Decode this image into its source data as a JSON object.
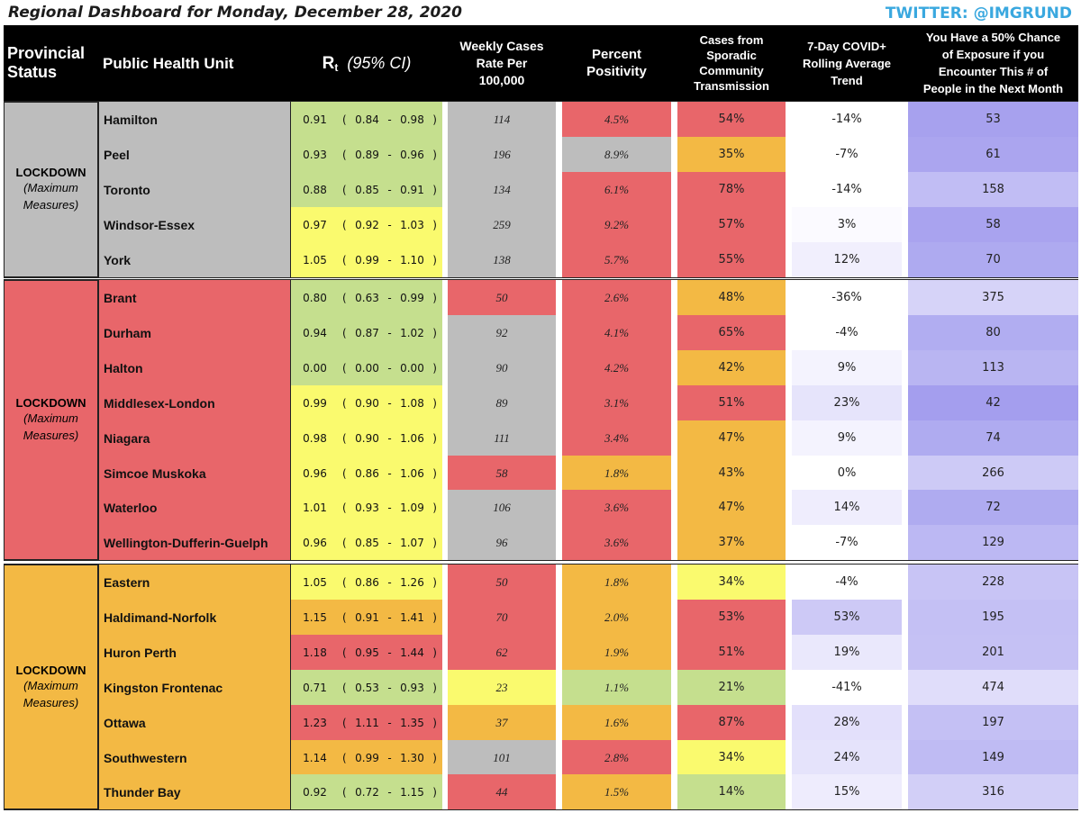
{
  "page": {
    "title": "Regional Dashboard for Monday, December 28, 2020",
    "twitter": "TWITTER: @IMGRUND"
  },
  "header": {
    "status": "Provincial\nStatus",
    "unit": "Public Health Unit",
    "rt_symbol": "R",
    "rt_sub": "t",
    "rt_ci": "(95% CI)",
    "weekly": "Weekly Cases\nRate Per\n100,000",
    "positivity": "Percent\nPositivity",
    "sporadic": "Cases from\nSporadic\nCommunity\nTransmission",
    "trend": "7-Day COVID+\nRolling Average\nTrend",
    "exposure": "You Have a 50% Chance\nof Exposure if you\nEncounter This # of\nPeople in the Next Month"
  },
  "colors": {
    "grey": "#bdbdbd",
    "red": "#e8666a",
    "orange": "#f3b944",
    "yellow": "#fafa6e",
    "green": "#c5df8e",
    "white": "#ffffff"
  },
  "groups": [
    {
      "status": "LOCKDOWN",
      "status_sub": "(Maximum\nMeasures)",
      "status_color": "#bdbdbd",
      "rows": [
        {
          "unit": "Hamilton",
          "unit_color": "#bdbdbd",
          "rt": "0.91",
          "lo": "0.84",
          "hi": "0.98",
          "rt_color": "#c5df8e",
          "weekly": "114",
          "weekly_color": "#bdbdbd",
          "pct": "4.5%",
          "pct_color": "#e8666a",
          "spor": "54%",
          "spor_color": "#e8666a",
          "trend": "-14%",
          "trend_color": "#ffffff",
          "expo": "53",
          "expo_color": "#a7a1ee"
        },
        {
          "unit": "Peel",
          "unit_color": "#bdbdbd",
          "rt": "0.93",
          "lo": "0.89",
          "hi": "0.96",
          "rt_color": "#c5df8e",
          "weekly": "196",
          "weekly_color": "#bdbdbd",
          "pct": "8.9%",
          "pct_color": "#bdbdbd",
          "spor": "35%",
          "spor_color": "#f3b944",
          "trend": "-7%",
          "trend_color": "#ffffff",
          "expo": "61",
          "expo_color": "#aba5ef"
        },
        {
          "unit": "Toronto",
          "unit_color": "#bdbdbd",
          "rt": "0.88",
          "lo": "0.85",
          "hi": "0.91",
          "rt_color": "#c5df8e",
          "weekly": "134",
          "weekly_color": "#bdbdbd",
          "pct": "6.1%",
          "pct_color": "#e8666a",
          "spor": "78%",
          "spor_color": "#e8666a",
          "trend": "-14%",
          "trend_color": "#ffffff",
          "expo": "158",
          "expo_color": "#c1bdf4"
        },
        {
          "unit": "Windsor-Essex",
          "unit_color": "#bdbdbd",
          "rt": "0.97",
          "lo": "0.92",
          "hi": "1.03",
          "rt_color": "#fafa6e",
          "weekly": "259",
          "weekly_color": "#bdbdbd",
          "pct": "9.2%",
          "pct_color": "#e8666a",
          "spor": "57%",
          "spor_color": "#e8666a",
          "trend": "3%",
          "trend_color": "#fbfaff",
          "expo": "58",
          "expo_color": "#a9a3ef"
        },
        {
          "unit": "York",
          "unit_color": "#bdbdbd",
          "rt": "1.05",
          "lo": "0.99",
          "hi": "1.10",
          "rt_color": "#fafa6e",
          "weekly": "138",
          "weekly_color": "#bdbdbd",
          "pct": "5.7%",
          "pct_color": "#e8666a",
          "spor": "55%",
          "spor_color": "#e8666a",
          "trend": "12%",
          "trend_color": "#f1effd",
          "expo": "70",
          "expo_color": "#aeaaf0"
        }
      ]
    },
    {
      "status": "LOCKDOWN",
      "status_sub": "(Maximum\nMeasures)",
      "status_color": "#e8666a",
      "rows": [
        {
          "unit": "Brant",
          "unit_color": "#e8666a",
          "rt": "0.80",
          "lo": "0.63",
          "hi": "0.99",
          "rt_color": "#c5df8e",
          "weekly": "50",
          "weekly_color": "#e8666a",
          "pct": "2.6%",
          "pct_color": "#e8666a",
          "spor": "48%",
          "spor_color": "#f3b944",
          "trend": "-36%",
          "trend_color": "#ffffff",
          "expo": "375",
          "expo_color": "#d6d3f8"
        },
        {
          "unit": "Durham",
          "unit_color": "#e8666a",
          "rt": "0.94",
          "lo": "0.87",
          "hi": "1.02",
          "rt_color": "#c5df8e",
          "weekly": "92",
          "weekly_color": "#bdbdbd",
          "pct": "4.1%",
          "pct_color": "#e8666a",
          "spor": "65%",
          "spor_color": "#e8666a",
          "trend": "-4%",
          "trend_color": "#ffffff",
          "expo": "80",
          "expo_color": "#b1adf1"
        },
        {
          "unit": "Halton",
          "unit_color": "#e8666a",
          "rt": "0.00",
          "lo": "0.00",
          "hi": "0.00",
          "rt_color": "#c5df8e",
          "weekly": "90",
          "weekly_color": "#bdbdbd",
          "pct": "4.2%",
          "pct_color": "#e8666a",
          "spor": "42%",
          "spor_color": "#f3b944",
          "trend": "9%",
          "trend_color": "#f4f3fe",
          "expo": "113",
          "expo_color": "#b9b5f2"
        },
        {
          "unit": "Middlesex-London",
          "unit_color": "#e8666a",
          "rt": "0.99",
          "lo": "0.90",
          "hi": "1.08",
          "rt_color": "#fafa6e",
          "weekly": "89",
          "weekly_color": "#bdbdbd",
          "pct": "3.1%",
          "pct_color": "#e8666a",
          "spor": "51%",
          "spor_color": "#e8666a",
          "trend": "23%",
          "trend_color": "#e6e4fb",
          "expo": "42",
          "expo_color": "#a49eee"
        },
        {
          "unit": "Niagara",
          "unit_color": "#e8666a",
          "rt": "0.98",
          "lo": "0.90",
          "hi": "1.06",
          "rt_color": "#fafa6e",
          "weekly": "111",
          "weekly_color": "#bdbdbd",
          "pct": "3.4%",
          "pct_color": "#e8666a",
          "spor": "47%",
          "spor_color": "#f3b944",
          "trend": "9%",
          "trend_color": "#f4f3fe",
          "expo": "74",
          "expo_color": "#afabf0"
        },
        {
          "unit": "Simcoe Muskoka",
          "unit_color": "#e8666a",
          "rt": "0.96",
          "lo": "0.86",
          "hi": "1.06",
          "rt_color": "#fafa6e",
          "weekly": "58",
          "weekly_color": "#e8666a",
          "pct": "1.8%",
          "pct_color": "#f3b944",
          "spor": "43%",
          "spor_color": "#f3b944",
          "trend": "0%",
          "trend_color": "#ffffff",
          "expo": "266",
          "expo_color": "#cdcaf6"
        },
        {
          "unit": "Waterloo",
          "unit_color": "#e8666a",
          "rt": "1.01",
          "lo": "0.93",
          "hi": "1.09",
          "rt_color": "#fafa6e",
          "weekly": "106",
          "weekly_color": "#bdbdbd",
          "pct": "3.6%",
          "pct_color": "#e8666a",
          "spor": "47%",
          "spor_color": "#f3b944",
          "trend": "14%",
          "trend_color": "#efedfd",
          "expo": "72",
          "expo_color": "#afabf0"
        },
        {
          "unit": "Wellington-Dufferin-Guelph",
          "unit_color": "#e8666a",
          "rt": "0.96",
          "lo": "0.85",
          "hi": "1.07",
          "rt_color": "#fafa6e",
          "weekly": "96",
          "weekly_color": "#bdbdbd",
          "pct": "3.6%",
          "pct_color": "#e8666a",
          "spor": "37%",
          "spor_color": "#f3b944",
          "trend": "-7%",
          "trend_color": "#ffffff",
          "expo": "129",
          "expo_color": "#bcb8f3"
        }
      ]
    },
    {
      "status": "LOCKDOWN",
      "status_sub": "(Maximum\nMeasures)",
      "status_color": "#f3b944",
      "rows": [
        {
          "unit": "Eastern",
          "unit_color": "#f3b944",
          "rt": "1.05",
          "lo": "0.86",
          "hi": "1.26",
          "rt_color": "#fafa6e",
          "weekly": "50",
          "weekly_color": "#e8666a",
          "pct": "1.8%",
          "pct_color": "#f3b944",
          "spor": "34%",
          "spor_color": "#fafa6e",
          "trend": "-4%",
          "trend_color": "#ffffff",
          "expo": "228",
          "expo_color": "#c8c4f5"
        },
        {
          "unit": "Haldimand-Norfolk",
          "unit_color": "#f3b944",
          "rt": "1.15",
          "lo": "0.91",
          "hi": "1.41",
          "rt_color": "#f3b944",
          "weekly": "70",
          "weekly_color": "#e8666a",
          "pct": "2.0%",
          "pct_color": "#f3b944",
          "spor": "53%",
          "spor_color": "#e8666a",
          "trend": "53%",
          "trend_color": "#cdc9f6",
          "expo": "195",
          "expo_color": "#c4c0f4"
        },
        {
          "unit": "Huron Perth",
          "unit_color": "#f3b944",
          "rt": "1.18",
          "lo": "0.95",
          "hi": "1.44",
          "rt_color": "#e8666a",
          "weekly": "62",
          "weekly_color": "#e8666a",
          "pct": "1.9%",
          "pct_color": "#f3b944",
          "spor": "51%",
          "spor_color": "#e8666a",
          "trend": "19%",
          "trend_color": "#eae8fc",
          "expo": "201",
          "expo_color": "#c5c1f4"
        },
        {
          "unit": "Kingston Frontenac",
          "unit_color": "#f3b944",
          "rt": "0.71",
          "lo": "0.53",
          "hi": "0.93",
          "rt_color": "#c5df8e",
          "weekly": "23",
          "weekly_color": "#fafa6e",
          "pct": "1.1%",
          "pct_color": "#c5df8e",
          "spor": "21%",
          "spor_color": "#c5df8e",
          "trend": "-41%",
          "trend_color": "#ffffff",
          "expo": "474",
          "expo_color": "#e0ddfa"
        },
        {
          "unit": "Ottawa",
          "unit_color": "#f3b944",
          "rt": "1.23",
          "lo": "1.11",
          "hi": "1.35",
          "rt_color": "#e8666a",
          "weekly": "37",
          "weekly_color": "#f3b944",
          "pct": "1.6%",
          "pct_color": "#f3b944",
          "spor": "87%",
          "spor_color": "#e8666a",
          "trend": "28%",
          "trend_color": "#e3e0fb",
          "expo": "197",
          "expo_color": "#c4c0f4"
        },
        {
          "unit": "Southwestern",
          "unit_color": "#f3b944",
          "rt": "1.14",
          "lo": "0.99",
          "hi": "1.30",
          "rt_color": "#f3b944",
          "weekly": "101",
          "weekly_color": "#bdbdbd",
          "pct": "2.8%",
          "pct_color": "#e8666a",
          "spor": "34%",
          "spor_color": "#fafa6e",
          "trend": "24%",
          "trend_color": "#e5e3fb",
          "expo": "149",
          "expo_color": "#bfbbf3"
        },
        {
          "unit": "Thunder Bay",
          "unit_color": "#f3b944",
          "rt": "0.92",
          "lo": "0.72",
          "hi": "1.15",
          "rt_color": "#c5df8e",
          "weekly": "44",
          "weekly_color": "#e8666a",
          "pct": "1.5%",
          "pct_color": "#f3b944",
          "spor": "14%",
          "spor_color": "#c5df8e",
          "trend": "15%",
          "trend_color": "#eeecfd",
          "expo": "316",
          "expo_color": "#d2cff7"
        }
      ]
    }
  ]
}
